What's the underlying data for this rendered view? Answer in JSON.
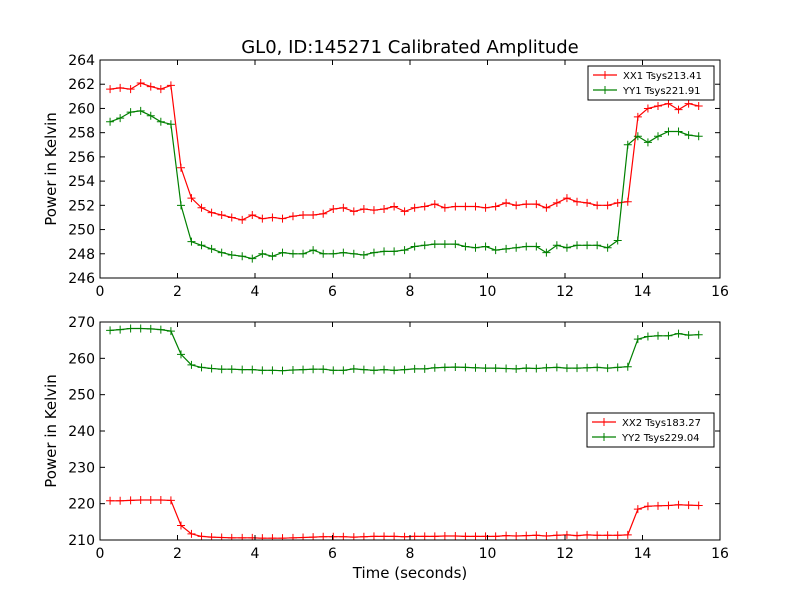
{
  "title": "GL0, ID:145271 Calibrated Amplitude",
  "colors": {
    "xx": "#ff0000",
    "yy": "#008000",
    "axis": "#000000",
    "background": "#ffffff"
  },
  "chart_data": [
    {
      "type": "line",
      "title": "GL0, ID:145271 Calibrated Amplitude",
      "xlabel": "",
      "ylabel": "Power in Kelvin",
      "xlim": [
        0,
        16
      ],
      "ylim": [
        246,
        264
      ],
      "xticks": [
        0,
        2,
        4,
        6,
        8,
        10,
        12,
        14,
        16
      ],
      "yticks": [
        246,
        248,
        250,
        252,
        254,
        256,
        258,
        260,
        262,
        264
      ],
      "grid": false,
      "legend_position": "top-right",
      "x": [
        0.26,
        0.52,
        0.79,
        1.05,
        1.31,
        1.57,
        1.83,
        2.09,
        2.36,
        2.62,
        2.88,
        3.14,
        3.4,
        3.67,
        3.93,
        4.19,
        4.45,
        4.71,
        4.98,
        5.24,
        5.5,
        5.76,
        6.02,
        6.28,
        6.55,
        6.81,
        7.07,
        7.33,
        7.59,
        7.86,
        8.12,
        8.38,
        8.64,
        8.9,
        9.17,
        9.43,
        9.69,
        9.95,
        10.21,
        10.48,
        10.74,
        11.0,
        11.26,
        11.52,
        11.79,
        12.05,
        12.31,
        12.57,
        12.83,
        13.1,
        13.36,
        13.62,
        13.88,
        14.14,
        14.4,
        14.67,
        14.93,
        15.19,
        15.45
      ],
      "series": [
        {
          "name": "XX1 Tsys213.41",
          "color": "#ff0000",
          "values": [
            261.6,
            261.7,
            261.6,
            262.1,
            261.8,
            261.6,
            261.9,
            255.1,
            252.6,
            251.8,
            251.4,
            251.2,
            251.0,
            250.8,
            251.2,
            250.9,
            251.0,
            250.9,
            251.1,
            251.2,
            251.2,
            251.3,
            251.7,
            251.8,
            251.5,
            251.7,
            251.6,
            251.7,
            251.9,
            251.5,
            251.8,
            251.9,
            252.1,
            251.8,
            251.9,
            251.9,
            251.9,
            251.8,
            251.9,
            252.2,
            252.0,
            252.1,
            252.1,
            251.8,
            252.2,
            252.6,
            252.3,
            252.2,
            252.0,
            252.0,
            252.2,
            252.3,
            259.3,
            260.0,
            260.2,
            260.4,
            259.9,
            260.4,
            260.2
          ]
        },
        {
          "name": "YY1 Tsys221.91",
          "color": "#008000",
          "values": [
            258.9,
            259.2,
            259.7,
            259.8,
            259.4,
            258.9,
            258.7,
            252.0,
            249.0,
            248.7,
            248.4,
            248.1,
            247.9,
            247.8,
            247.6,
            248.0,
            247.8,
            248.1,
            248.0,
            248.0,
            248.3,
            248.0,
            248.0,
            248.1,
            248.0,
            247.9,
            248.1,
            248.2,
            248.2,
            248.3,
            248.6,
            248.7,
            248.8,
            248.8,
            248.8,
            248.6,
            248.5,
            248.6,
            248.3,
            248.4,
            248.5,
            248.6,
            248.6,
            248.1,
            248.7,
            248.5,
            248.7,
            248.7,
            248.7,
            248.5,
            249.1,
            257.0,
            257.7,
            257.2,
            257.7,
            258.1,
            258.1,
            257.8,
            257.7
          ]
        }
      ]
    },
    {
      "type": "line",
      "title": "",
      "xlabel": "Time (seconds)",
      "ylabel": "Power in Kelvin",
      "xlim": [
        0,
        16
      ],
      "ylim": [
        210,
        270
      ],
      "xticks": [
        0,
        2,
        4,
        6,
        8,
        10,
        12,
        14,
        16
      ],
      "yticks": [
        210,
        220,
        230,
        240,
        250,
        260,
        270
      ],
      "grid": false,
      "legend_position": "center-right",
      "x": [
        0.26,
        0.52,
        0.79,
        1.05,
        1.31,
        1.57,
        1.83,
        2.09,
        2.36,
        2.62,
        2.88,
        3.14,
        3.4,
        3.67,
        3.93,
        4.19,
        4.45,
        4.71,
        4.98,
        5.24,
        5.5,
        5.76,
        6.02,
        6.28,
        6.55,
        6.81,
        7.07,
        7.33,
        7.59,
        7.86,
        8.12,
        8.38,
        8.64,
        8.9,
        9.17,
        9.43,
        9.69,
        9.95,
        10.21,
        10.48,
        10.74,
        11.0,
        11.26,
        11.52,
        11.79,
        12.05,
        12.31,
        12.57,
        12.83,
        13.1,
        13.36,
        13.62,
        13.88,
        14.14,
        14.4,
        14.67,
        14.93,
        15.19,
        15.45
      ],
      "series": [
        {
          "name": "XX2 Tsys183.27",
          "color": "#ff0000",
          "values": [
            220.8,
            220.8,
            220.9,
            221.0,
            221.0,
            221.0,
            220.9,
            214.0,
            211.7,
            211.0,
            210.8,
            210.7,
            210.6,
            210.6,
            210.6,
            210.5,
            210.5,
            210.5,
            210.6,
            210.7,
            210.8,
            210.9,
            210.9,
            210.9,
            210.8,
            210.9,
            211.0,
            211.0,
            211.0,
            210.9,
            211.0,
            211.0,
            211.0,
            211.1,
            211.1,
            211.0,
            211.0,
            211.0,
            211.0,
            211.2,
            211.1,
            211.2,
            211.3,
            211.1,
            211.3,
            211.4,
            211.2,
            211.4,
            211.3,
            211.3,
            211.3,
            211.4,
            218.5,
            219.3,
            219.4,
            219.5,
            219.7,
            219.6,
            219.5
          ]
        },
        {
          "name": "YY2 Tsys229.04",
          "color": "#008000",
          "values": [
            267.7,
            267.9,
            268.2,
            268.2,
            268.1,
            267.9,
            267.5,
            261.1,
            258.2,
            257.5,
            257.2,
            257.0,
            257.0,
            256.9,
            256.9,
            256.7,
            256.7,
            256.6,
            256.8,
            256.9,
            257.0,
            257.0,
            256.7,
            256.7,
            257.1,
            256.9,
            256.7,
            256.9,
            256.7,
            256.9,
            257.1,
            257.1,
            257.4,
            257.5,
            257.6,
            257.5,
            257.4,
            257.3,
            257.3,
            257.2,
            257.1,
            257.3,
            257.2,
            257.4,
            257.5,
            257.3,
            257.3,
            257.4,
            257.5,
            257.3,
            257.5,
            257.7,
            265.3,
            266.0,
            266.2,
            266.2,
            266.8,
            266.4,
            266.5
          ]
        }
      ]
    }
  ]
}
